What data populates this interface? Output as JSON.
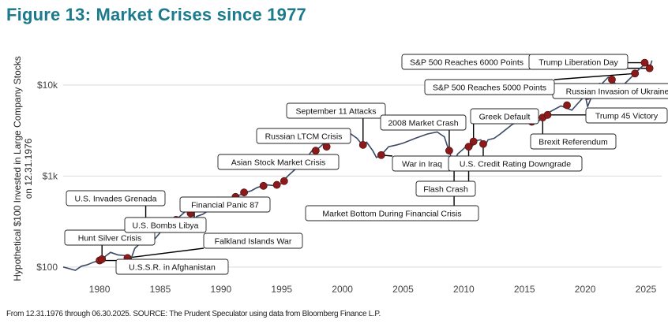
{
  "title": "Figure 13: Market Crises since 1977",
  "source": "From 12.31.1976 through 06.30.2025. SOURCE: The Prudent Speculator using data from Bloomberg Finance L.P.",
  "chart_data": {
    "type": "line",
    "title": "Figure 13: Market Crises since 1977",
    "ylabel_line1": "Hypothetical $100 Invested in Large Company Stocks",
    "ylabel_line2": "on 12.31.1976",
    "xlabel": "",
    "yscale": "log",
    "ylim": [
      80,
      25000
    ],
    "xlim": [
      1977,
      2026.3
    ],
    "yticks": [
      {
        "value": 100,
        "label": "$100"
      },
      {
        "value": 1000,
        "label": "$1k"
      },
      {
        "value": 10000,
        "label": "$10k"
      }
    ],
    "xticks": [
      1980,
      1985,
      1990,
      1995,
      2000,
      2005,
      2010,
      2015,
      2020,
      2025
    ],
    "grid": "horizontal",
    "line_color": "#3a4a66",
    "marker_color": "#8b1a1a",
    "series": [
      {
        "name": "Large Company Stocks",
        "points": [
          [
            1977.0,
            100
          ],
          [
            1977.5,
            96
          ],
          [
            1978.0,
            92
          ],
          [
            1978.5,
            102
          ],
          [
            1979.0,
            106
          ],
          [
            1979.5,
            113
          ],
          [
            1980.0,
            118
          ],
          [
            1980.2,
            112
          ],
          [
            1980.5,
            132
          ],
          [
            1980.9,
            145
          ],
          [
            1981.5,
            136
          ],
          [
            1982.0,
            134
          ],
          [
            1982.6,
            124
          ],
          [
            1982.9,
            160
          ],
          [
            1983.5,
            190
          ],
          [
            1984.0,
            210
          ],
          [
            1984.5,
            200
          ],
          [
            1985.0,
            240
          ],
          [
            1985.5,
            270
          ],
          [
            1986.0,
            300
          ],
          [
            1986.5,
            350
          ],
          [
            1987.6,
            470
          ],
          [
            1987.8,
            330
          ],
          [
            1988.0,
            360
          ],
          [
            1988.5,
            380
          ],
          [
            1989.0,
            420
          ],
          [
            1989.6,
            520
          ],
          [
            1990.0,
            540
          ],
          [
            1990.5,
            510
          ],
          [
            1990.8,
            470
          ],
          [
            1991.2,
            590
          ],
          [
            1991.8,
            640
          ],
          [
            1992.5,
            690
          ],
          [
            1993.0,
            750
          ],
          [
            1993.8,
            800
          ],
          [
            1994.5,
            780
          ],
          [
            1995.0,
            830
          ],
          [
            1995.5,
            1000
          ],
          [
            1996.0,
            1150
          ],
          [
            1996.5,
            1300
          ],
          [
            1997.0,
            1550
          ],
          [
            1997.5,
            1900
          ],
          [
            1998.0,
            2000
          ],
          [
            1998.5,
            2300
          ],
          [
            1998.7,
            2000
          ],
          [
            1999.0,
            2600
          ],
          [
            1999.5,
            2850
          ],
          [
            2000.0,
            3000
          ],
          [
            2000.7,
            2900
          ],
          [
            2001.2,
            2600
          ],
          [
            2001.7,
            2150
          ],
          [
            2002.0,
            2350
          ],
          [
            2002.5,
            1900
          ],
          [
            2002.8,
            1600
          ],
          [
            2003.2,
            1700
          ],
          [
            2003.8,
            2100
          ],
          [
            2004.5,
            2200
          ],
          [
            2005.0,
            2300
          ],
          [
            2006.0,
            2600
          ],
          [
            2007.0,
            2900
          ],
          [
            2007.8,
            3050
          ],
          [
            2008.4,
            2700
          ],
          [
            2008.8,
            1850
          ],
          [
            2009.15,
            1400
          ],
          [
            2009.5,
            1750
          ],
          [
            2010.0,
            2000
          ],
          [
            2010.3,
            2200
          ],
          [
            2010.5,
            1950
          ],
          [
            2011.0,
            2450
          ],
          [
            2011.4,
            2500
          ],
          [
            2011.7,
            2100
          ],
          [
            2012.0,
            2500
          ],
          [
            2012.5,
            2600
          ],
          [
            2013.0,
            2900
          ],
          [
            2014.0,
            3700
          ],
          [
            2015.0,
            4150
          ],
          [
            2015.7,
            3900
          ],
          [
            2016.1,
            3950
          ],
          [
            2016.5,
            4400
          ],
          [
            2017.0,
            5000
          ],
          [
            2018.0,
            5900
          ],
          [
            2018.9,
            5300
          ],
          [
            2019.5,
            6500
          ],
          [
            2020.0,
            7700
          ],
          [
            2020.2,
            5800
          ],
          [
            2020.6,
            7900
          ],
          [
            2021.0,
            9200
          ],
          [
            2021.9,
            12200
          ],
          [
            2022.2,
            11500
          ],
          [
            2022.8,
            9200
          ],
          [
            2023.3,
            10500
          ],
          [
            2023.9,
            12600
          ],
          [
            2024.1,
            13400
          ],
          [
            2024.5,
            15200
          ],
          [
            2024.9,
            16800
          ],
          [
            2025.1,
            17800
          ],
          [
            2025.3,
            15300
          ],
          [
            2025.5,
            18600
          ]
        ]
      }
    ],
    "annotations": [
      {
        "label": "Hunt Silver Crisis",
        "year": 1980.2,
        "value": 120
      },
      {
        "label": "U.S.S.R. in Afghanistan",
        "year": 1980.0,
        "value": 118
      },
      {
        "label": "U.S. Invades Grenada",
        "year": 1983.8,
        "value": 200
      },
      {
        "label": "U.S. Bombs Libya",
        "year": 1986.3,
        "value": 330
      },
      {
        "label": "Falkland Islands War",
        "year": 1982.3,
        "value": 126
      },
      {
        "label": "Financial Panic 87",
        "year": 1987.8,
        "value": 350
      },
      {
        "label": "Asian Stock Market Crisis",
        "year": 1997.8,
        "value": 1900
      },
      {
        "label": "Russian LTCM Crisis",
        "year": 1998.7,
        "value": 2100
      },
      {
        "label": "September 11 Attacks",
        "year": 2001.7,
        "value": 2200
      },
      {
        "label": "War in Iraq",
        "year": 2003.2,
        "value": 1700
      },
      {
        "label": "2008 Market Crash",
        "year": 2008.8,
        "value": 1900
      },
      {
        "label": "Market Bottom During Financial Crisis",
        "year": 2009.2,
        "value": 1400
      },
      {
        "label": "Flash Crash",
        "year": 2010.4,
        "value": 2100
      },
      {
        "label": "Greek Default",
        "year": 2010.8,
        "value": 2400
      },
      {
        "label": "U.S. Credit Rating Downgrade",
        "year": 2011.6,
        "value": 2250
      },
      {
        "label": "Brexit Referendum",
        "year": 2016.5,
        "value": 4400
      },
      {
        "label": "Trump 45 Victory",
        "year": 2016.9,
        "value": 4700
      },
      {
        "label": "Russian Invasion of Ukraine",
        "year": 2022.2,
        "value": 11500
      },
      {
        "label": "S&P 500 Reaches 5000 Points",
        "year": 2024.1,
        "value": 13400
      },
      {
        "label": "S&P 500 Reaches 6000 Points",
        "year": 2024.9,
        "value": 17600
      },
      {
        "label": "Trump Liberation Day",
        "year": 2025.3,
        "value": 15300
      }
    ],
    "markers": [
      [
        1980.0,
        118
      ],
      [
        1980.2,
        122
      ],
      [
        1982.3,
        126
      ],
      [
        1983.8,
        200
      ],
      [
        1986.3,
        330
      ],
      [
        1987.5,
        390
      ],
      [
        1989.7,
        540
      ],
      [
        1990.6,
        510
      ],
      [
        1991.2,
        590
      ],
      [
        1991.9,
        660
      ],
      [
        1993.5,
        780
      ],
      [
        1994.6,
        800
      ],
      [
        1995.2,
        880
      ],
      [
        1997.8,
        1900
      ],
      [
        1998.7,
        2100
      ],
      [
        2001.7,
        2200
      ],
      [
        2003.2,
        1700
      ],
      [
        2008.8,
        1900
      ],
      [
        2009.2,
        1400
      ],
      [
        2010.4,
        2100
      ],
      [
        2010.8,
        2400
      ],
      [
        2011.6,
        2250
      ],
      [
        2015.6,
        3950
      ],
      [
        2016.5,
        4400
      ],
      [
        2016.9,
        4700
      ],
      [
        2018.5,
        6000
      ],
      [
        2020.2,
        7600
      ],
      [
        2021.2,
        9600
      ],
      [
        2022.2,
        11500
      ],
      [
        2024.1,
        13400
      ],
      [
        2024.9,
        17600
      ],
      [
        2025.3,
        15300
      ]
    ]
  }
}
